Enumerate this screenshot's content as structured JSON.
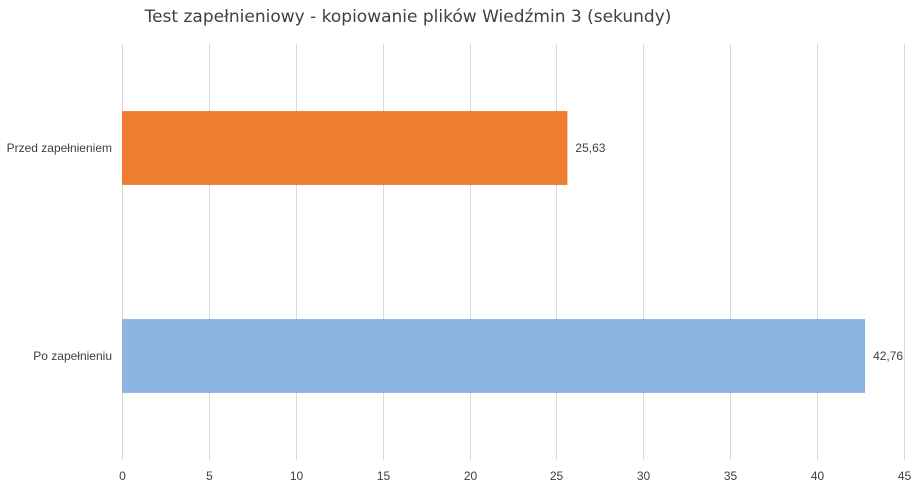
{
  "chart_data": {
    "type": "bar",
    "orientation": "horizontal",
    "title": "Test zapełnieniowy - kopiowanie plików Wiedźmin 3 (sekundy)",
    "categories": [
      "Przed zapełnieniem",
      "Po zapełnieniu"
    ],
    "values": [
      25.63,
      42.76
    ],
    "value_labels": [
      "25,63",
      "42,76"
    ],
    "colors": [
      "#ed7d31",
      "#8eb4e3"
    ],
    "xlim": [
      0,
      45
    ],
    "xticks": [
      0,
      5,
      10,
      15,
      20,
      25,
      30,
      35,
      40,
      45
    ],
    "grid": true,
    "legend": "none"
  }
}
